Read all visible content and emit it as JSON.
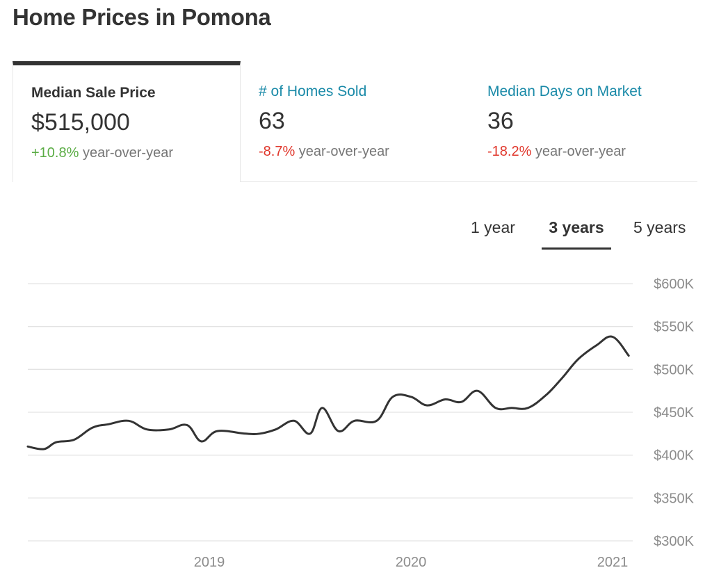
{
  "title": "Home Prices in Pomona",
  "tabs": [
    {
      "label": "Median Sale Price",
      "value": "$515,000",
      "change": "+10.8%",
      "change_suffix": " year-over-year",
      "trend": "up",
      "active": true
    },
    {
      "label": "# of Homes Sold",
      "value": "63",
      "change": "-8.7%",
      "change_suffix": " year-over-year",
      "trend": "down",
      "active": false
    },
    {
      "label": "Median Days on Market",
      "value": "36",
      "change": "-18.2%",
      "change_suffix": " year-over-year",
      "trend": "down",
      "active": false
    }
  ],
  "ranges": [
    {
      "label": "1 year",
      "active": false
    },
    {
      "label": "3 years",
      "active": true
    },
    {
      "label": "5 years",
      "active": false
    }
  ],
  "colors": {
    "line": "#333333",
    "positive": "#5aac44",
    "negative": "#e0362b",
    "link": "#1a8aa8"
  },
  "chart_data": {
    "type": "line",
    "title": "",
    "xlabel": "",
    "ylabel": "",
    "y_ticks": [
      "$300K",
      "$350K",
      "$400K",
      "$450K",
      "$500K",
      "$550K",
      "$600K"
    ],
    "y_tick_values": [
      300000,
      350000,
      400000,
      450000,
      500000,
      550000,
      600000
    ],
    "ylim": [
      300000,
      600000
    ],
    "x_ticks": [
      "2019",
      "2020",
      "2021"
    ],
    "x_tick_values": [
      2019.0,
      2020.0,
      2021.0
    ],
    "xlim": [
      2018.1,
      2021.1
    ],
    "grid": true,
    "series": [
      {
        "name": "",
        "x": [
          2018.1,
          2018.18,
          2018.24,
          2018.33,
          2018.42,
          2018.5,
          2018.6,
          2018.69,
          2018.8,
          2018.89,
          2018.96,
          2019.04,
          2019.18,
          2019.25,
          2019.33,
          2019.42,
          2019.5,
          2019.56,
          2019.64,
          2019.72,
          2019.83,
          2019.91,
          2020.0,
          2020.08,
          2020.17,
          2020.25,
          2020.33,
          2020.42,
          2020.5,
          2020.58,
          2020.67,
          2020.75,
          2020.83,
          2020.92,
          2021.0,
          2021.08
        ],
        "y": [
          410000,
          407000,
          415000,
          418000,
          432000,
          436000,
          440000,
          430000,
          430000,
          435000,
          416000,
          428000,
          425000,
          425000,
          430000,
          440000,
          425000,
          455000,
          428000,
          440000,
          440000,
          468000,
          468000,
          458000,
          465000,
          462000,
          475000,
          455000,
          455000,
          455000,
          470000,
          490000,
          512000,
          528000,
          538000,
          516000
        ]
      }
    ]
  }
}
